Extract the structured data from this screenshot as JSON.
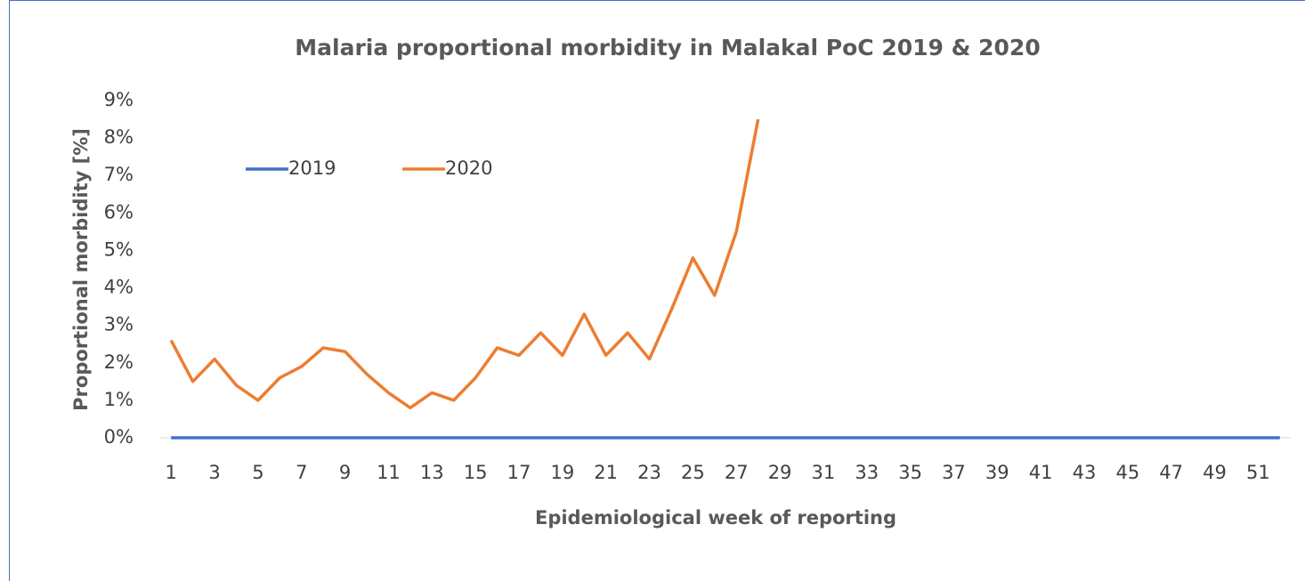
{
  "chart_data": {
    "type": "line",
    "title": "Malaria proportional morbidity in Malakal PoC 2019 & 2020",
    "x_label": "Epidemiological week of reporting",
    "y_label": "Proportional morbidity [%]",
    "categories": [
      1,
      null,
      3,
      null,
      5,
      null,
      7,
      null,
      9,
      null,
      11,
      null,
      13,
      null,
      15,
      null,
      17,
      null,
      19,
      null,
      21,
      null,
      23,
      null,
      25,
      null,
      27,
      null,
      29,
      null,
      31,
      null,
      33,
      null,
      35,
      null,
      37,
      null,
      39,
      null,
      41,
      null,
      43,
      null,
      45,
      null,
      47,
      null,
      49,
      null,
      51,
      null
    ],
    "series": [
      {
        "name": "2019",
        "color": "#4472c4",
        "values": [
          0,
          0,
          0,
          0,
          0,
          0,
          0,
          0,
          0,
          0,
          0,
          0,
          0,
          0,
          0,
          0,
          0,
          0,
          0,
          0,
          0,
          0,
          0,
          0,
          0,
          0,
          0,
          0,
          0,
          0,
          0,
          0,
          0,
          0,
          0,
          0,
          0,
          0,
          0,
          0,
          0,
          0,
          0,
          0,
          0,
          0,
          0,
          0,
          0,
          0,
          0,
          0
        ]
      },
      {
        "name": "2020",
        "color": "#ed7d31",
        "values": [
          2.6,
          1.5,
          2.1,
          1.4,
          1.0,
          1.6,
          1.9,
          2.4,
          2.3,
          1.7,
          1.2,
          0.8,
          1.2,
          1.0,
          1.6,
          2.4,
          2.2,
          2.8,
          2.2,
          3.3,
          2.2,
          2.8,
          2.1,
          3.4,
          4.8,
          3.8,
          5.5,
          8.5,
          null,
          null,
          null,
          null,
          null,
          null,
          null,
          null,
          null,
          null,
          null,
          null,
          null,
          null,
          null,
          null,
          null,
          null,
          null,
          null,
          null,
          null,
          null,
          null
        ]
      }
    ],
    "ylim": [
      0,
      9
    ],
    "yticks": [
      {
        "value": 0,
        "label": "0%"
      },
      {
        "value": 1,
        "label": "1%"
      },
      {
        "value": 2,
        "label": "2%"
      },
      {
        "value": 3,
        "label": "3%"
      },
      {
        "value": 4,
        "label": "4%"
      },
      {
        "value": 5,
        "label": "5%"
      },
      {
        "value": 6,
        "label": "6%"
      },
      {
        "value": 7,
        "label": "7%"
      },
      {
        "value": 8,
        "label": "8%"
      },
      {
        "value": 9,
        "label": "9%"
      }
    ],
    "grid": false
  }
}
